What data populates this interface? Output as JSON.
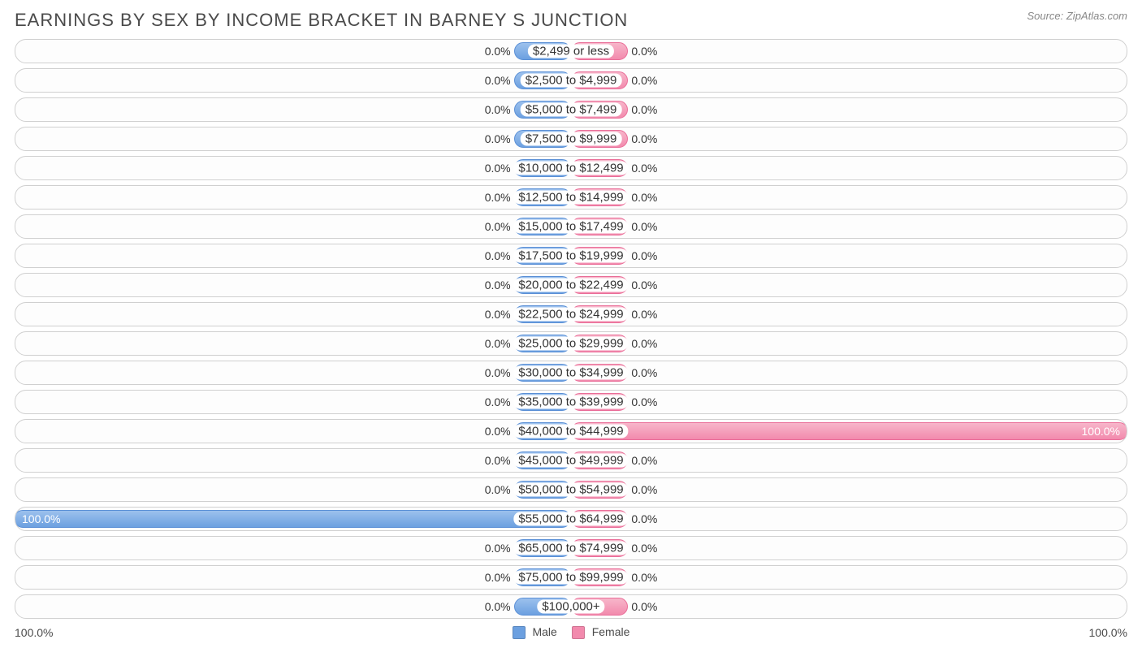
{
  "title": "EARNINGS BY SEX BY INCOME BRACKET IN BARNEY S JUNCTION",
  "source": "Source: ZipAtlas.com",
  "chart": {
    "type": "diverging-bar",
    "axis_left_label": "100.0%",
    "axis_right_label": "100.0%",
    "min_bar_pct": 10,
    "colors": {
      "male_fill_top": "#9cc1ed",
      "male_fill_bottom": "#6ca0e0",
      "male_border": "#5a8fd6",
      "female_fill_top": "#f7b6ca",
      "female_fill_bottom": "#f28aad",
      "female_border": "#ea6d98",
      "row_border": "#d0d0d0",
      "row_bg": "#fdfdfd",
      "background": "#ffffff",
      "text": "#333333",
      "text_light": "#888888"
    },
    "legend": [
      {
        "label": "Male",
        "color": "#6ca0e0"
      },
      {
        "label": "Female",
        "color": "#f28aad"
      }
    ],
    "rows": [
      {
        "label": "$2,499 or less",
        "male": 0.0,
        "female": 0.0
      },
      {
        "label": "$2,500 to $4,999",
        "male": 0.0,
        "female": 0.0
      },
      {
        "label": "$5,000 to $7,499",
        "male": 0.0,
        "female": 0.0
      },
      {
        "label": "$7,500 to $9,999",
        "male": 0.0,
        "female": 0.0
      },
      {
        "label": "$10,000 to $12,499",
        "male": 0.0,
        "female": 0.0
      },
      {
        "label": "$12,500 to $14,999",
        "male": 0.0,
        "female": 0.0
      },
      {
        "label": "$15,000 to $17,499",
        "male": 0.0,
        "female": 0.0
      },
      {
        "label": "$17,500 to $19,999",
        "male": 0.0,
        "female": 0.0
      },
      {
        "label": "$20,000 to $22,499",
        "male": 0.0,
        "female": 0.0
      },
      {
        "label": "$22,500 to $24,999",
        "male": 0.0,
        "female": 0.0
      },
      {
        "label": "$25,000 to $29,999",
        "male": 0.0,
        "female": 0.0
      },
      {
        "label": "$30,000 to $34,999",
        "male": 0.0,
        "female": 0.0
      },
      {
        "label": "$35,000 to $39,999",
        "male": 0.0,
        "female": 0.0
      },
      {
        "label": "$40,000 to $44,999",
        "male": 0.0,
        "female": 100.0
      },
      {
        "label": "$45,000 to $49,999",
        "male": 0.0,
        "female": 0.0
      },
      {
        "label": "$50,000 to $54,999",
        "male": 0.0,
        "female": 0.0
      },
      {
        "label": "$55,000 to $64,999",
        "male": 100.0,
        "female": 0.0
      },
      {
        "label": "$65,000 to $74,999",
        "male": 0.0,
        "female": 0.0
      },
      {
        "label": "$75,000 to $99,999",
        "male": 0.0,
        "female": 0.0
      },
      {
        "label": "$100,000+",
        "male": 0.0,
        "female": 0.0
      }
    ]
  }
}
